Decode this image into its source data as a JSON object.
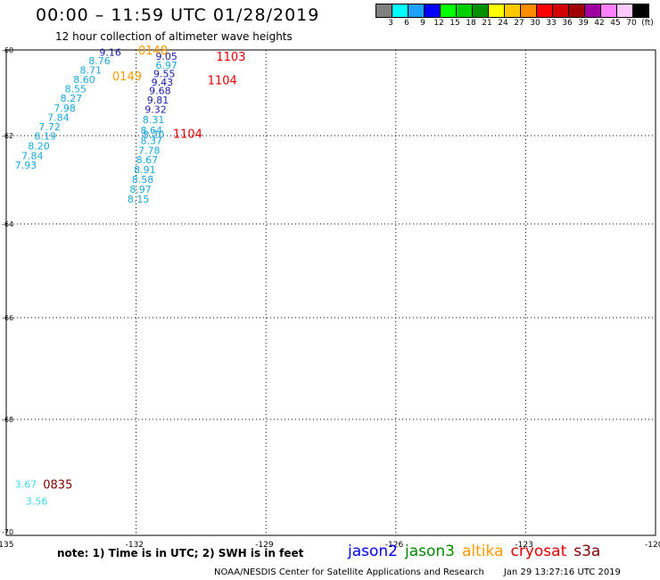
{
  "header": {
    "title": "00:00 – 11:59 UTC 01/28/2019",
    "subtitle": "12 hour collection of altimeter wave heights"
  },
  "color_scale": {
    "colors": [
      "#808080",
      "#00ffff",
      "#1ea0ff",
      "#0000ff",
      "#00ff00",
      "#00d000",
      "#009000",
      "#ffff00",
      "#ffc800",
      "#ff8c00",
      "#ff0000",
      "#d40000",
      "#a00000",
      "#a000a0",
      "#ff80ff",
      "#ffc8ff",
      "#000000"
    ],
    "labels": [
      "3",
      "6",
      "9",
      "12",
      "15",
      "18",
      "21",
      "24",
      "27",
      "30",
      "33",
      "36",
      "39",
      "42",
      "45",
      "70",
      "(ft)"
    ]
  },
  "map": {
    "y_ticks": [
      "-60",
      "-62",
      "-64",
      "-66",
      "-68",
      "-70"
    ],
    "x_ticks": [
      "-135",
      "-132",
      "-129",
      "-126",
      "-123",
      "-120"
    ],
    "passes": [
      {
        "label": "0148",
        "color": "#ff9900",
        "lat": -60.0,
        "lon": -131.95
      },
      {
        "label": "0149",
        "color": "#ff9900",
        "lat": -60.6,
        "lon": -132.55
      },
      {
        "label": "1103",
        "color": "#e00000",
        "lat": -60.15,
        "lon": -130.15
      },
      {
        "label": "1104",
        "color": "#e00000",
        "lat": -60.7,
        "lon": -130.35
      },
      {
        "label": "1104",
        "color": "#e00000",
        "lat": -61.95,
        "lon": -131.15
      },
      {
        "label": "0835",
        "color": "#800000",
        "lat": -69.15,
        "lon": -134.15
      }
    ],
    "points": [
      {
        "v": "9.16",
        "color": "#1a1aaa",
        "lat": -60.05,
        "lon": -132.85
      },
      {
        "v": "8.76",
        "color": "#1aa7d8",
        "lat": -60.25,
        "lon": -133.1
      },
      {
        "v": "8.71",
        "color": "#1aa7d8",
        "lat": -60.47,
        "lon": -133.3
      },
      {
        "v": "8.60",
        "color": "#1aa7d8",
        "lat": -60.69,
        "lon": -133.45
      },
      {
        "v": "8.55",
        "color": "#1aa7d8",
        "lat": -60.91,
        "lon": -133.65
      },
      {
        "v": "8.27",
        "color": "#1aa7d8",
        "lat": -61.13,
        "lon": -133.75
      },
      {
        "v": "7.98",
        "color": "#1aa7d8",
        "lat": -61.35,
        "lon": -133.9
      },
      {
        "v": "7.84",
        "color": "#1aa7d8",
        "lat": -61.57,
        "lon": -134.05
      },
      {
        "v": "7.72",
        "color": "#1aa7d8",
        "lat": -61.79,
        "lon": -134.25
      },
      {
        "v": "8.19",
        "color": "#1aa7d8",
        "lat": -62.01,
        "lon": -134.35
      },
      {
        "v": "8.20",
        "color": "#1aa7d8",
        "lat": -62.23,
        "lon": -134.5
      },
      {
        "v": "7.84",
        "color": "#1aa7d8",
        "lat": -62.45,
        "lon": -134.65
      },
      {
        "v": "7.93",
        "color": "#1aa7d8",
        "lat": -62.67,
        "lon": -134.8
      },
      {
        "v": "9.05",
        "color": "#1a1aaa",
        "lat": -60.15,
        "lon": -131.55
      },
      {
        "v": "6.97",
        "color": "#1aa7d8",
        "lat": -60.35,
        "lon": -131.55
      },
      {
        "v": "9.55",
        "color": "#1a1aaa",
        "lat": -60.55,
        "lon": -131.6
      },
      {
        "v": "9.43",
        "color": "#1a1aaa",
        "lat": -60.75,
        "lon": -131.65
      },
      {
        "v": "9.68",
        "color": "#1a1aaa",
        "lat": -60.95,
        "lon": -131.7
      },
      {
        "v": "9.81",
        "color": "#1a1aaa",
        "lat": -61.17,
        "lon": -131.75
      },
      {
        "v": "9.32",
        "color": "#1a1aaa",
        "lat": -61.39,
        "lon": -131.8
      },
      {
        "v": "8.31",
        "color": "#1aa7d8",
        "lat": -61.63,
        "lon": -131.85
      },
      {
        "v": "8.64",
        "color": "#1aa7d8",
        "lat": -61.87,
        "lon": -131.9
      },
      {
        "v": "8.20",
        "color": "#1aa7d8",
        "lat": -61.97,
        "lon": -131.85
      },
      {
        "v": "8.37",
        "color": "#1aa7d8",
        "lat": -62.11,
        "lon": -131.9
      },
      {
        "v": "7.78",
        "color": "#1aa7d8",
        "lat": -62.33,
        "lon": -131.95
      },
      {
        "v": "8.67",
        "color": "#1aa7d8",
        "lat": -62.55,
        "lon": -132.0
      },
      {
        "v": "8.91",
        "color": "#1aa7d8",
        "lat": -62.77,
        "lon": -132.05
      },
      {
        "v": "8.58",
        "color": "#1aa7d8",
        "lat": -62.99,
        "lon": -132.1
      },
      {
        "v": "8.97",
        "color": "#1aa7d8",
        "lat": -63.21,
        "lon": -132.15
      },
      {
        "v": "8.15",
        "color": "#1aa7d8",
        "lat": -63.43,
        "lon": -132.2
      },
      {
        "v": "3.67",
        "color": "#40d8e8",
        "lat": -69.15,
        "lon": -134.8
      },
      {
        "v": "3.56",
        "color": "#40d8e8",
        "lat": -69.45,
        "lon": -134.55
      }
    ]
  },
  "footer": {
    "note": "note: 1) Time is in UTC; 2) SWH is in feet",
    "satellites": [
      {
        "name": "jason2",
        "color": "#0000ff"
      },
      {
        "name": "jason3",
        "color": "#008800"
      },
      {
        "name": "altika",
        "color": "#ff9900"
      },
      {
        "name": "cryosat",
        "color": "#e00000"
      },
      {
        "name": "s3a",
        "color": "#800000"
      }
    ],
    "credit": "NOAA/NESDIS Center for Satellite Applications and Research",
    "timestamp": "Jan 29 13:27:16 UTC 2019"
  }
}
